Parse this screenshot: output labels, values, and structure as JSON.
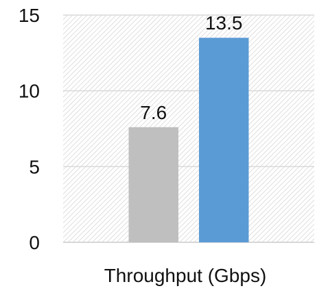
{
  "chart_data": {
    "type": "bar",
    "categories": [
      "Throughput (Gbps)"
    ],
    "xlabel": "Throughput (Gbps)",
    "ylabel": "",
    "title": "",
    "ylim": [
      0,
      15
    ],
    "yticks": [
      0,
      5,
      10,
      15
    ],
    "ytick_labels": [
      "0",
      "5",
      "10",
      "15"
    ],
    "grid": true,
    "legend": "none",
    "series": [
      {
        "values": [
          7.6
        ],
        "label": "7.6",
        "color": "#bfbfbf"
      },
      {
        "values": [
          13.5
        ],
        "label": "13.5",
        "color": "#5b9bd5"
      }
    ],
    "plot_background": "hatched",
    "gridline_color": "#d9d9d9"
  }
}
